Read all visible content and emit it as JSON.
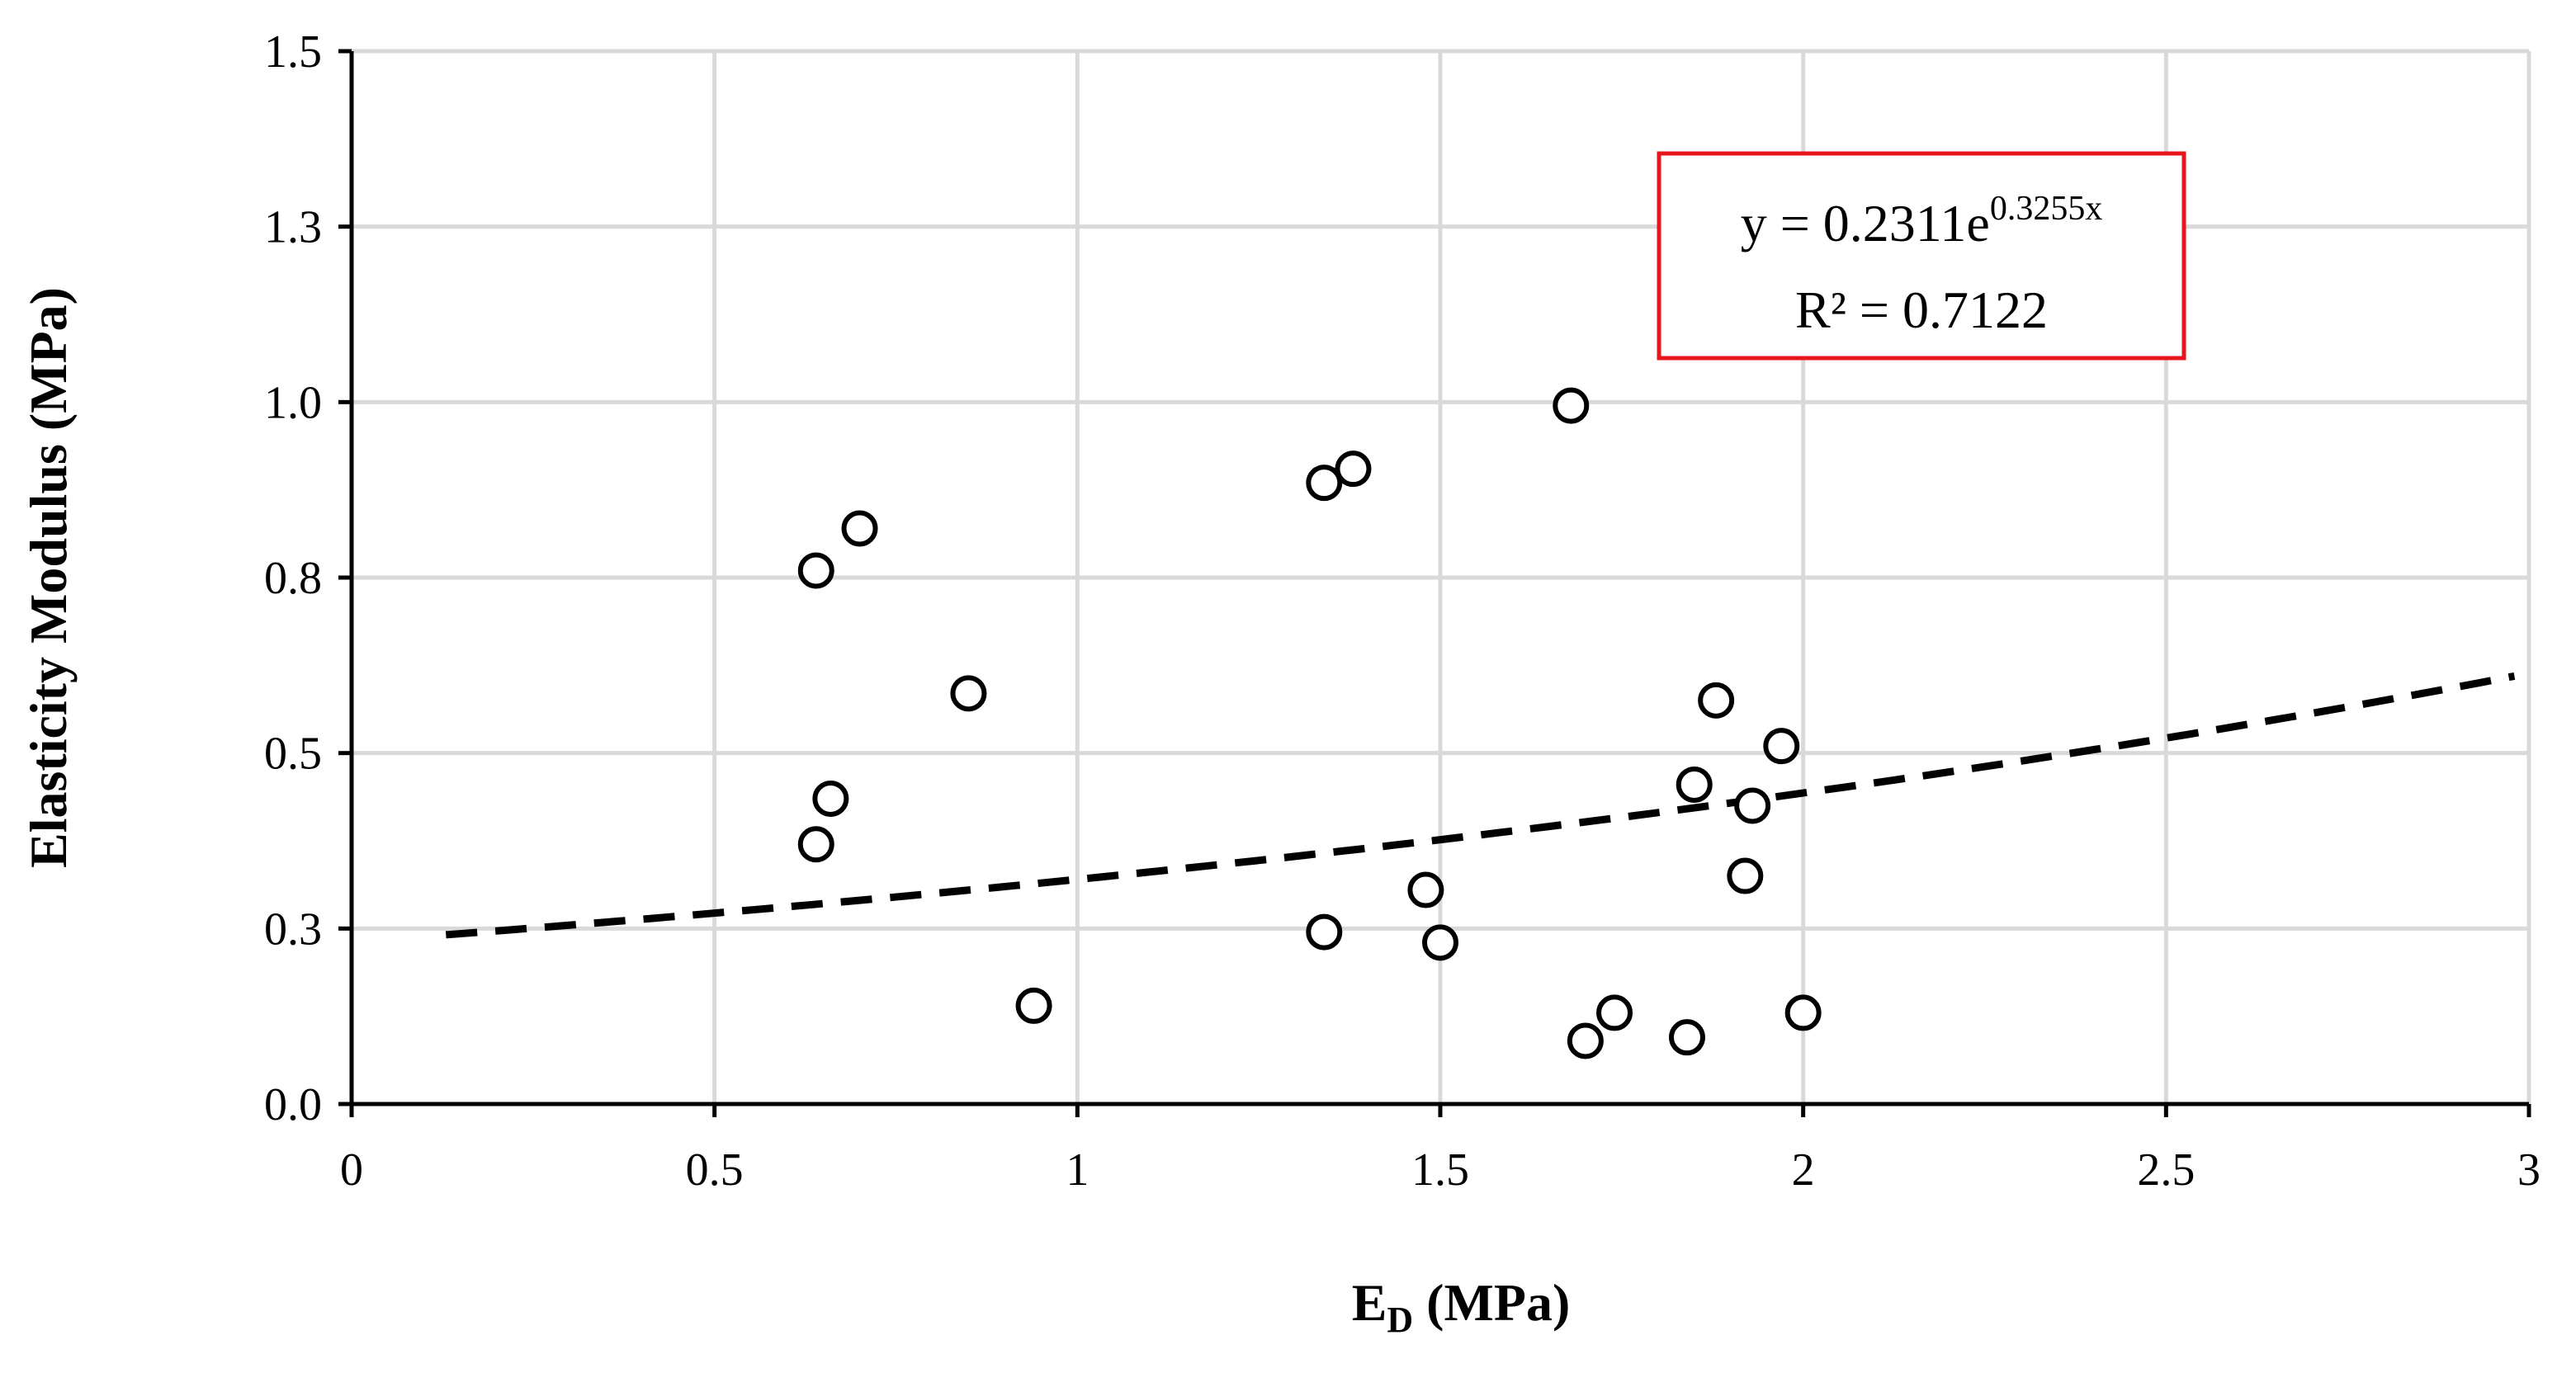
{
  "chart_data": {
    "type": "scatter",
    "title": "",
    "xlabel": {
      "main": "E",
      "subscript": "D",
      "rest": " (MPa)"
    },
    "ylabel": "Elasticity Modulus (MPa)",
    "xlim": [
      0,
      3
    ],
    "ylim": [
      0,
      1.5
    ],
    "x_ticks": [
      0,
      0.5,
      1,
      1.5,
      2,
      2.5,
      3
    ],
    "x_tick_labels": [
      "0",
      "0.5",
      "1",
      "1.5",
      "2",
      "2.5",
      "3"
    ],
    "y_ticks": [
      0,
      0.25,
      0.5,
      0.75,
      1.0,
      1.25,
      1.5
    ],
    "y_tick_labels": [
      "0.0",
      "0.3",
      "0.5",
      "0.8",
      "1.0",
      "1.3",
      "1.5"
    ],
    "grid": true,
    "series": [
      {
        "marker": "open-circle",
        "x": [
          0.64,
          0.7,
          0.64,
          0.66,
          0.85,
          0.94,
          1.34,
          1.38,
          1.34,
          1.48,
          1.5,
          1.68,
          1.7,
          1.74,
          1.84,
          1.85,
          1.88,
          1.92,
          1.93,
          1.97,
          2.0
        ],
        "y": [
          0.76,
          0.82,
          0.37,
          0.435,
          0.585,
          0.14,
          0.885,
          0.905,
          0.245,
          0.305,
          0.23,
          0.995,
          0.09,
          0.13,
          0.095,
          0.455,
          0.575,
          0.325,
          0.425,
          0.51,
          0.13
        ]
      }
    ],
    "trendline": {
      "type": "exponential",
      "style": "dashed",
      "a": 0.2311,
      "b": 0.3255,
      "x_range": [
        0.13,
        2.98
      ]
    },
    "annotation": {
      "equation_prefix": "y = 0.2311e",
      "equation_exponent": "0.3255x",
      "r2_text": "R² = 0.7122",
      "border_color": "#e8141c"
    }
  }
}
